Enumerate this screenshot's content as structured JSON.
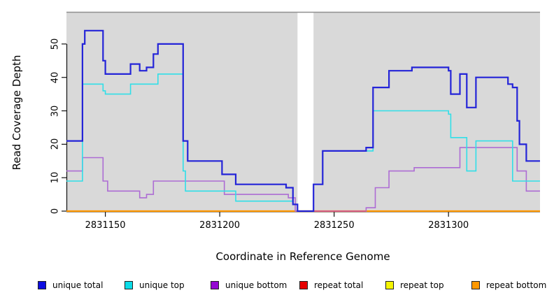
{
  "chart_data": {
    "type": "line",
    "subtype": "step-coverage",
    "title": "",
    "xlabel": "Coordinate in Reference Genome",
    "ylabel": "Read Coverage Depth",
    "xlim": [
      2831133,
      2831340
    ],
    "ylim": [
      0,
      59.6
    ],
    "x_ticks": [
      2831150,
      2831200,
      2831250,
      2831300
    ],
    "y_ticks": [
      0,
      10,
      20,
      30,
      40,
      50
    ],
    "grid": false,
    "plot_background": "#d9d9d9",
    "gap_region": {
      "x_start": 2831234,
      "x_end": 2831241,
      "color": "#ffffff"
    },
    "series": [
      {
        "name": "unique total",
        "color": "#2424d8",
        "width": 2.2,
        "steps": [
          [
            2831133,
            21
          ],
          [
            2831140,
            50
          ],
          [
            2831141,
            54
          ],
          [
            2831149,
            45
          ],
          [
            2831150,
            41
          ],
          [
            2831161,
            44
          ],
          [
            2831165,
            42
          ],
          [
            2831168,
            43
          ],
          [
            2831171,
            47
          ],
          [
            2831173,
            50
          ],
          [
            2831184,
            21
          ],
          [
            2831186,
            15
          ],
          [
            2831201,
            11
          ],
          [
            2831207,
            8
          ],
          [
            2831229,
            7
          ],
          [
            2831232,
            2
          ],
          [
            2831234,
            0
          ],
          [
            2831241,
            8
          ],
          [
            2831245,
            18
          ],
          [
            2831264,
            19
          ],
          [
            2831267,
            37
          ],
          [
            2831274,
            42
          ],
          [
            2831284,
            43
          ],
          [
            2831300,
            42
          ],
          [
            2831301,
            35
          ],
          [
            2831305,
            41
          ],
          [
            2831308,
            31
          ],
          [
            2831312,
            40
          ],
          [
            2831326,
            38
          ],
          [
            2831328,
            37
          ],
          [
            2831330,
            27
          ],
          [
            2831331,
            20
          ],
          [
            2831334,
            15
          ],
          [
            2831340,
            15
          ]
        ]
      },
      {
        "name": "unique top",
        "color": "#30dfe8",
        "width": 1.6,
        "steps": [
          [
            2831133,
            9
          ],
          [
            2831140,
            38
          ],
          [
            2831149,
            36
          ],
          [
            2831150,
            35
          ],
          [
            2831161,
            38
          ],
          [
            2831173,
            41
          ],
          [
            2831184,
            12
          ],
          [
            2831185,
            6
          ],
          [
            2831207,
            3
          ],
          [
            2831232,
            2
          ],
          [
            2831234,
            0
          ],
          [
            2831241,
            8
          ],
          [
            2831245,
            18
          ],
          [
            2831267,
            30
          ],
          [
            2831300,
            29
          ],
          [
            2831301,
            22
          ],
          [
            2831308,
            12
          ],
          [
            2831312,
            21
          ],
          [
            2831328,
            9
          ],
          [
            2831340,
            9
          ]
        ]
      },
      {
        "name": "unique bottom",
        "color": "#ad6cd4",
        "width": 1.6,
        "steps": [
          [
            2831133,
            12
          ],
          [
            2831140,
            16
          ],
          [
            2831149,
            9
          ],
          [
            2831151,
            6
          ],
          [
            2831165,
            4
          ],
          [
            2831168,
            5
          ],
          [
            2831171,
            9
          ],
          [
            2831202,
            5
          ],
          [
            2831230,
            4
          ],
          [
            2831233,
            0
          ],
          [
            2831264,
            1
          ],
          [
            2831268,
            7
          ],
          [
            2831274,
            12
          ],
          [
            2831285,
            13
          ],
          [
            2831305,
            19
          ],
          [
            2831330,
            12
          ],
          [
            2831334,
            6
          ],
          [
            2831340,
            6
          ]
        ]
      },
      {
        "name": "repeat total",
        "color": "#e01010",
        "width": 1.6,
        "steps": [
          [
            2831133,
            0
          ],
          [
            2831340,
            0
          ]
        ]
      },
      {
        "name": "repeat top",
        "color": "#f2f20c",
        "width": 1.6,
        "steps": [
          [
            2831133,
            0
          ],
          [
            2831340,
            0
          ]
        ]
      },
      {
        "name": "repeat bottom",
        "color": "#ff9800",
        "width": 2.2,
        "steps": [
          [
            2831133,
            0
          ],
          [
            2831340,
            0
          ]
        ]
      }
    ],
    "overlap_blend_segment": {
      "x_start": 2831241,
      "x_end": 2831264,
      "y": 0,
      "color": "#d95e82"
    },
    "legend_position": "bottom"
  },
  "legend": {
    "items": [
      {
        "label": "unique total",
        "color": "#0d0de0"
      },
      {
        "label": "unique top",
        "color": "#0cdce8"
      },
      {
        "label": "unique bottom",
        "color": "#9408d2"
      },
      {
        "label": "repeat total",
        "color": "#e60000"
      },
      {
        "label": "repeat top",
        "color": "#f5f500"
      },
      {
        "label": "repeat bottom",
        "color": "#ff9800"
      }
    ]
  }
}
